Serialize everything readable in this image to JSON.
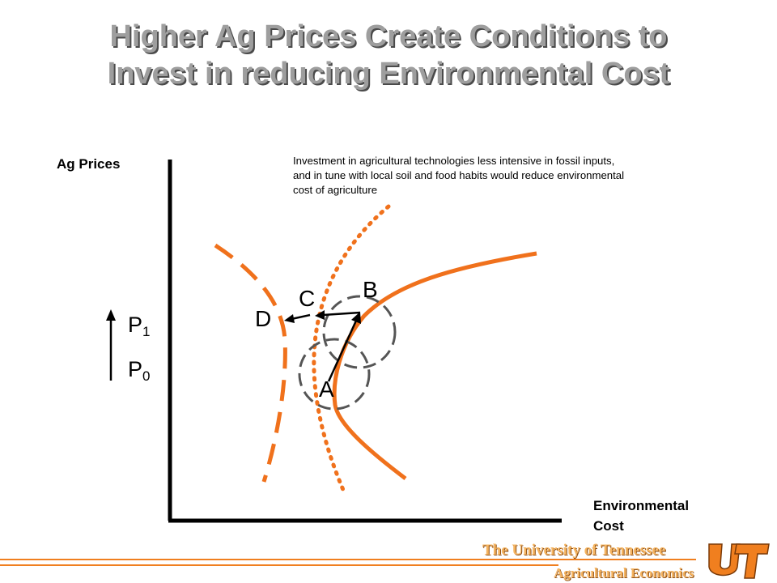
{
  "title": {
    "line1": "Higher Ag Prices Create Conditions to",
    "line2": "Invest in reducing Environmental Cost"
  },
  "axes": {
    "y_label": "Ag Prices",
    "x_label_line1": "Environmental",
    "x_label_line2": "Cost"
  },
  "note": "Investment in agricultural technologies less intensive in fossil inputs, and in tune with local soil and food habits would reduce environmental cost of agriculture",
  "price_labels": {
    "p1": {
      "base": "P",
      "sub": "1"
    },
    "p0": {
      "base": "P",
      "sub": "0"
    }
  },
  "points": {
    "a": "A",
    "b": "B",
    "c": "C",
    "d": "D"
  },
  "footer": {
    "university": "The University of Tennessee",
    "department": "Agricultural Economics",
    "logo_text": "UT"
  },
  "colors": {
    "curve": "#f0711c",
    "title": "#9e9e9e",
    "circle": "#555555",
    "footer_accent": "#f07f1f"
  }
}
